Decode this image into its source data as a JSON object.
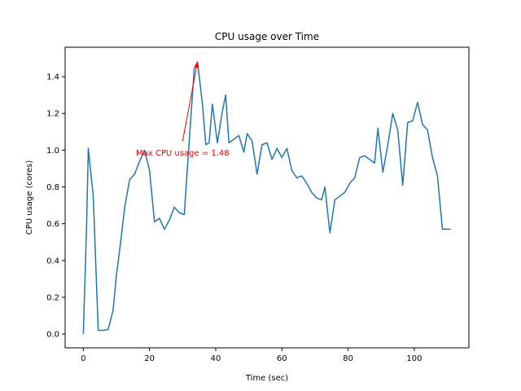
{
  "chart_data": {
    "type": "line",
    "title": "CPU usage over Time",
    "xlabel": "Time (sec)",
    "ylabel": "CPU usage (cores)",
    "xlim": [
      -5.5,
      116.5
    ],
    "ylim": [
      -0.075,
      1.56
    ],
    "xticks": [
      0,
      20,
      40,
      60,
      80,
      100
    ],
    "yticks": [
      0.0,
      0.2,
      0.4,
      0.6,
      0.8,
      1.0,
      1.2,
      1.4
    ],
    "ytick_labels": [
      "0.0",
      "0.2",
      "0.4",
      "0.6",
      "0.8",
      "1.0",
      "1.2",
      "1.4"
    ],
    "grid": false,
    "line_color": "#1f77b4",
    "annotation_color": "#ff0000",
    "annotation": {
      "text": "Max CPU usage = 1.48",
      "point": [
        34.5,
        1.48
      ],
      "text_position": [
        30,
        1.05
      ]
    },
    "series": [
      {
        "x": [
          0,
          1,
          1.5,
          3,
          4.5,
          6,
          7.5,
          9,
          10,
          11,
          12.5,
          14,
          15.5,
          17,
          18.5,
          20,
          21.5,
          23,
          24.5,
          26,
          27.5,
          29,
          30.5,
          32,
          33.5,
          34.5,
          36,
          37,
          38,
          39,
          40.5,
          42,
          43,
          44,
          45.5,
          47,
          48.5,
          49.5,
          51,
          52.5,
          54,
          55.5,
          57,
          58.5,
          60,
          61.5,
          63,
          64.5,
          66,
          67.5,
          69,
          70.5,
          72,
          73,
          74.5,
          76,
          77.5,
          79,
          80.5,
          82,
          83.5,
          85,
          86.5,
          88,
          89,
          90.5,
          92,
          93.5,
          95,
          96.5,
          98,
          99.5,
          101,
          102.5,
          104,
          105.5,
          107,
          108.5,
          110,
          111
        ],
        "y": [
          0.0,
          0.6,
          1.01,
          0.75,
          0.02,
          0.02,
          0.025,
          0.13,
          0.32,
          0.46,
          0.69,
          0.84,
          0.87,
          0.94,
          1.0,
          0.89,
          0.61,
          0.63,
          0.57,
          0.62,
          0.69,
          0.66,
          0.65,
          1.05,
          1.44,
          1.48,
          1.25,
          1.03,
          1.04,
          1.25,
          1.04,
          1.21,
          1.3,
          1.04,
          1.06,
          1.08,
          0.99,
          1.09,
          1.05,
          0.87,
          1.03,
          1.04,
          0.95,
          1.01,
          0.96,
          1.01,
          0.89,
          0.85,
          0.86,
          0.82,
          0.77,
          0.74,
          0.73,
          0.8,
          0.55,
          0.73,
          0.75,
          0.77,
          0.82,
          0.85,
          0.96,
          0.97,
          0.95,
          0.93,
          1.12,
          0.88,
          1.03,
          1.2,
          1.11,
          0.81,
          1.15,
          1.16,
          1.26,
          1.14,
          1.11,
          0.96,
          0.86,
          0.57,
          0.57,
          0.57
        ]
      }
    ]
  }
}
